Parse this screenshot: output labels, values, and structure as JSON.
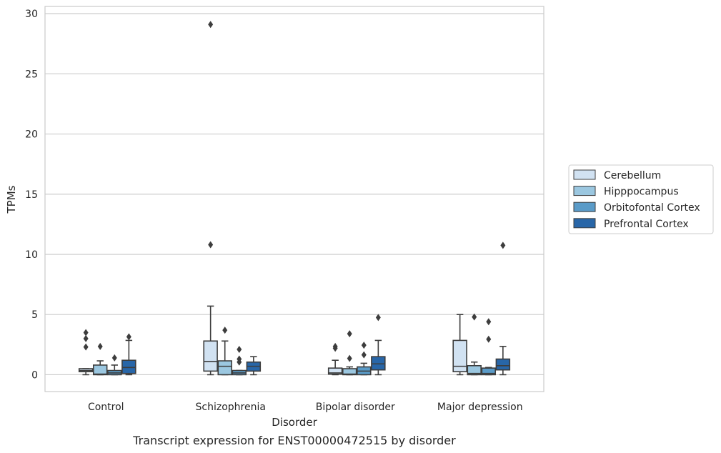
{
  "chart_data": {
    "type": "box",
    "caption": "Transcript expression for ENST00000472515 by disorder",
    "xlabel": "Disorder",
    "ylabel": "TPMs",
    "ylim": [
      -1.4,
      30.6
    ],
    "yticks": [
      0,
      5,
      10,
      15,
      20,
      25,
      30
    ],
    "grid": "horizontal",
    "legend_position": "right",
    "categories": [
      "Control",
      "Schizophrenia",
      "Bipolar disorder",
      "Major depression"
    ],
    "series": [
      {
        "name": "Cerebellum",
        "color": "#d1e2f2",
        "boxes": [
          {
            "whisker_low": 0.0,
            "q1": 0.25,
            "median": 0.35,
            "q3": 0.5,
            "whisker_high": 0.5,
            "outliers": [
              2.3,
              3.0,
              3.5
            ]
          },
          {
            "whisker_low": 0.0,
            "q1": 0.3,
            "median": 1.1,
            "q3": 2.8,
            "whisker_high": 5.7,
            "outliers": [
              10.8,
              29.1
            ]
          },
          {
            "whisker_low": 0.0,
            "q1": 0.05,
            "median": 0.15,
            "q3": 0.55,
            "whisker_high": 1.2,
            "outliers": [
              2.2,
              2.35
            ]
          },
          {
            "whisker_low": 0.0,
            "q1": 0.25,
            "median": 0.7,
            "q3": 2.85,
            "whisker_high": 5.0,
            "outliers": []
          }
        ]
      },
      {
        "name": "Hipppocampus",
        "color": "#9bc7e0",
        "boxes": [
          {
            "whisker_low": 0.0,
            "q1": 0.0,
            "median": 0.05,
            "q3": 0.8,
            "whisker_high": 1.15,
            "outliers": [
              2.35
            ]
          },
          {
            "whisker_low": 0.0,
            "q1": 0.0,
            "median": 0.7,
            "q3": 1.15,
            "whisker_high": 2.8,
            "outliers": [
              3.7
            ]
          },
          {
            "whisker_low": 0.0,
            "q1": 0.0,
            "median": 0.05,
            "q3": 0.5,
            "whisker_high": 0.65,
            "outliers": [
              1.35,
              3.4
            ]
          },
          {
            "whisker_low": 0.0,
            "q1": 0.0,
            "median": 0.1,
            "q3": 0.75,
            "whisker_high": 1.05,
            "outliers": [
              4.8
            ]
          }
        ]
      },
      {
        "name": "Orbitofontal Cortex",
        "color": "#5a9bc8",
        "boxes": [
          {
            "whisker_low": 0.0,
            "q1": 0.0,
            "median": 0.15,
            "q3": 0.35,
            "whisker_high": 0.8,
            "outliers": [
              1.4
            ]
          },
          {
            "whisker_low": 0.0,
            "q1": 0.0,
            "median": 0.15,
            "q3": 0.35,
            "whisker_high": 0.35,
            "outliers": [
              1.05,
              1.3,
              2.1
            ]
          },
          {
            "whisker_low": 0.0,
            "q1": 0.0,
            "median": 0.3,
            "q3": 0.65,
            "whisker_high": 0.95,
            "outliers": [
              1.65,
              2.45
            ]
          },
          {
            "whisker_low": 0.0,
            "q1": 0.0,
            "median": 0.1,
            "q3": 0.55,
            "whisker_high": 0.6,
            "outliers": [
              2.95,
              4.4
            ]
          }
        ]
      },
      {
        "name": "Prefrontal Cortex",
        "color": "#2866a8",
        "boxes": [
          {
            "whisker_low": 0.0,
            "q1": 0.1,
            "median": 0.6,
            "q3": 1.2,
            "whisker_high": 2.85,
            "outliers": [
              3.15
            ]
          },
          {
            "whisker_low": 0.0,
            "q1": 0.3,
            "median": 0.7,
            "q3": 1.05,
            "whisker_high": 1.5,
            "outliers": []
          },
          {
            "whisker_low": 0.0,
            "q1": 0.4,
            "median": 0.9,
            "q3": 1.5,
            "whisker_high": 2.85,
            "outliers": [
              4.75
            ]
          },
          {
            "whisker_low": 0.0,
            "q1": 0.4,
            "median": 0.75,
            "q3": 1.3,
            "whisker_high": 2.35,
            "outliers": [
              10.75
            ]
          }
        ]
      }
    ]
  }
}
